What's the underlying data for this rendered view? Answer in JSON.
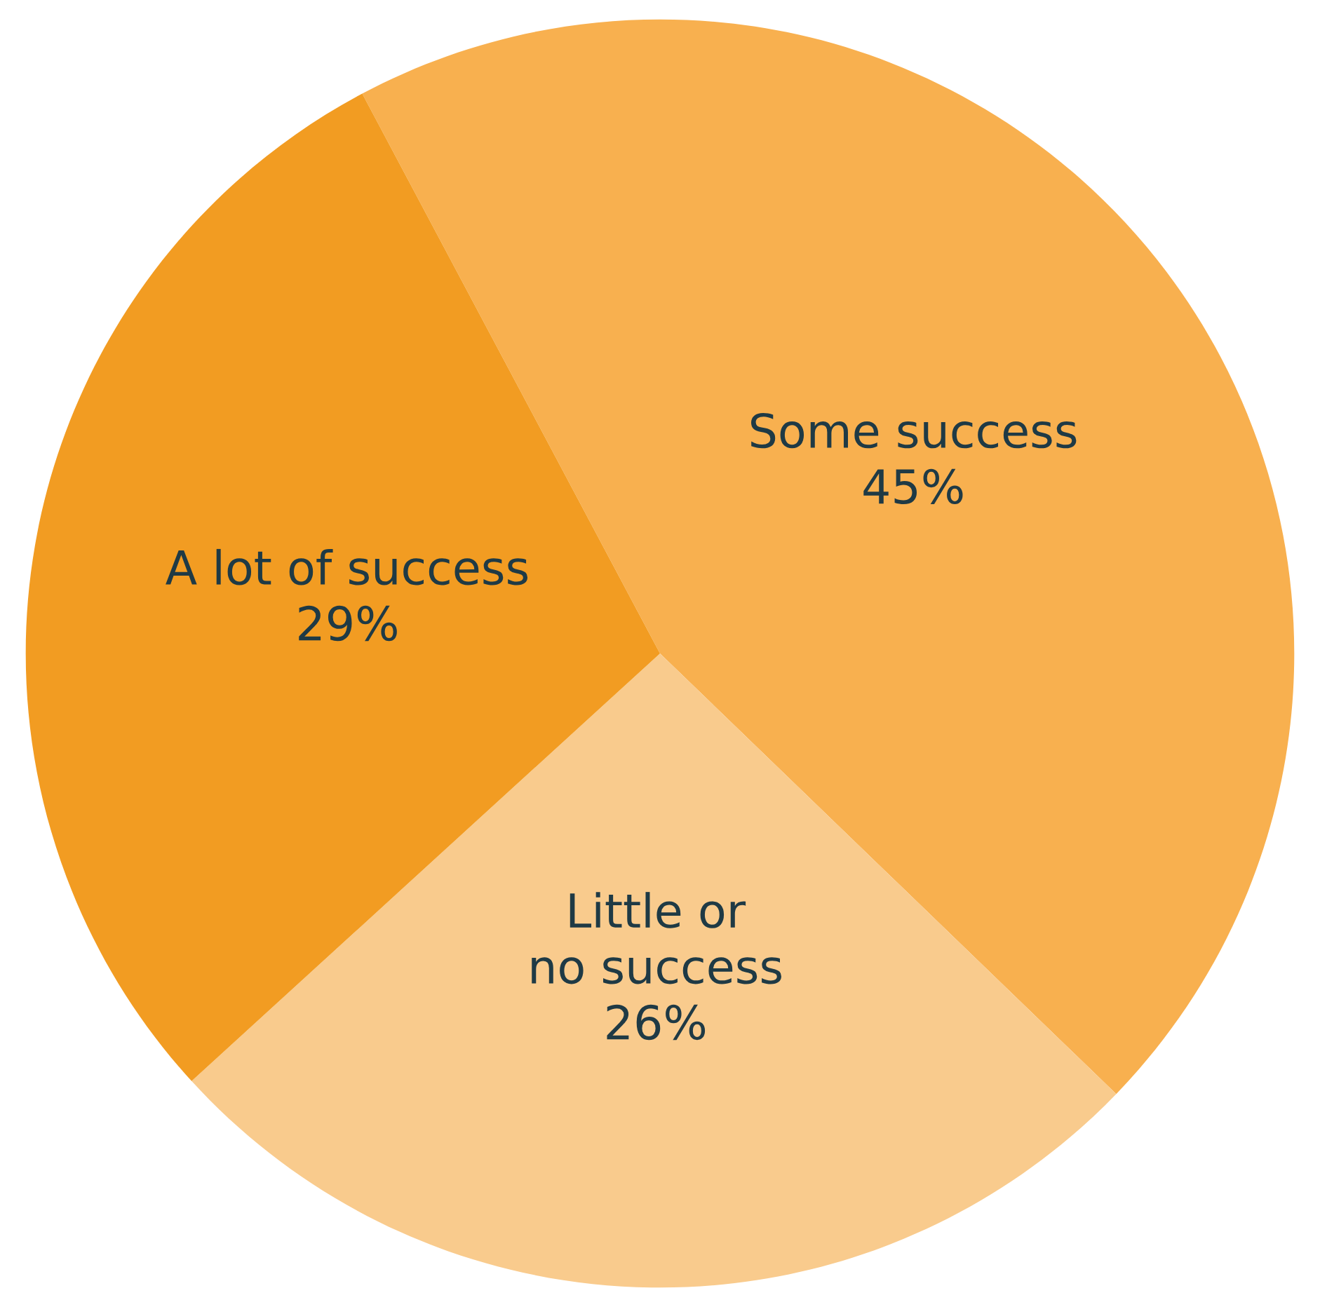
{
  "chart_data": {
    "type": "pie",
    "categories": [
      "Some success",
      "Little or\nno success",
      "A lot of success"
    ],
    "values": [
      45,
      26,
      29
    ],
    "value_labels": [
      "45%",
      "26%",
      "29%"
    ],
    "colors": [
      "#f8b04f",
      "#f9cb8d",
      "#f29c22"
    ],
    "legend": false
  }
}
